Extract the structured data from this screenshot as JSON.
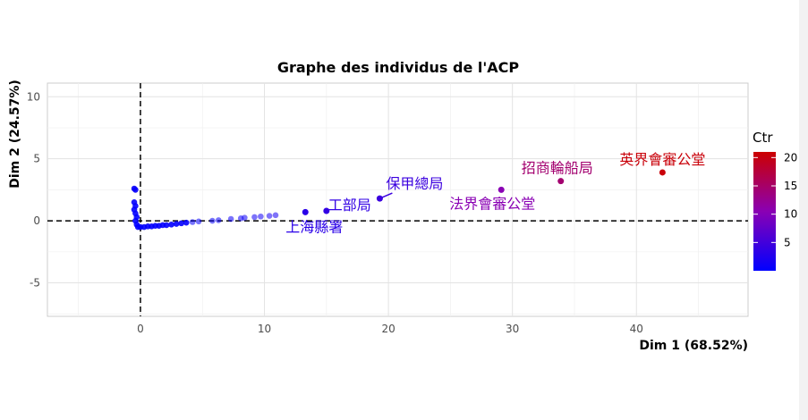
{
  "chart_data": {
    "type": "scatter",
    "title": "Graphe des individus de l'ACP",
    "xlabel": "Dim 1 (68.52%)",
    "ylabel": "Dim 2 (24.57%)",
    "xlim": [
      -7.5,
      49
    ],
    "ylim": [
      -7.7,
      11.1
    ],
    "xticks": [
      0,
      10,
      20,
      30,
      40
    ],
    "yticks": [
      -5,
      0,
      5,
      10
    ],
    "grid": true,
    "reference_lines": {
      "x": 0,
      "y": 0,
      "style": "dashed"
    },
    "color_legend": {
      "title": "Ctr",
      "ticks": [
        5,
        10,
        15,
        20
      ],
      "range": [
        0,
        21
      ],
      "low_color": "#0000ff",
      "high_color": "#cc0000",
      "placement": "right"
    },
    "labeled_points": [
      {
        "label": "英界會審公堂",
        "x": 42.1,
        "y": 3.9,
        "ctr": 20.5
      },
      {
        "label": "招商輪船局",
        "x": 33.9,
        "y": 3.2,
        "ctr": 14.5
      },
      {
        "label": "法界會審公堂",
        "x": 29.1,
        "y": 2.5,
        "ctr": 10.5
      },
      {
        "label": "保甲總局",
        "x": 19.3,
        "y": 1.8,
        "ctr": 4.5
      },
      {
        "label": "工部局",
        "x": 15.0,
        "y": 0.8,
        "ctr": 3.8
      },
      {
        "label": "上海縣署",
        "x": 13.3,
        "y": 0.7,
        "ctr": 3.2
      }
    ],
    "points": [
      {
        "x": -0.5,
        "y": 2.6,
        "ctr": 0.5
      },
      {
        "x": -0.4,
        "y": 2.5,
        "ctr": 0.5
      },
      {
        "x": -0.5,
        "y": 1.5,
        "ctr": 0.3
      },
      {
        "x": -0.4,
        "y": 1.2,
        "ctr": 0.3
      },
      {
        "x": -0.5,
        "y": 0.9,
        "ctr": 0.2
      },
      {
        "x": -0.4,
        "y": 0.6,
        "ctr": 0.2
      },
      {
        "x": -0.3,
        "y": 0.3,
        "ctr": 0.1
      },
      {
        "x": -0.4,
        "y": 0.0,
        "ctr": 0.1
      },
      {
        "x": -0.3,
        "y": -0.3,
        "ctr": 0.1
      },
      {
        "x": -0.2,
        "y": -0.5,
        "ctr": 0.1
      },
      {
        "x": 0.0,
        "y": -0.5,
        "ctr": 0.1
      },
      {
        "x": 0.3,
        "y": -0.5,
        "ctr": 0.1
      },
      {
        "x": 0.6,
        "y": -0.45,
        "ctr": 0.1
      },
      {
        "x": 0.9,
        "y": -0.45,
        "ctr": 0.1
      },
      {
        "x": 1.2,
        "y": -0.4,
        "ctr": 0.1
      },
      {
        "x": 1.5,
        "y": -0.4,
        "ctr": 0.1
      },
      {
        "x": 1.8,
        "y": -0.35,
        "ctr": 0.2
      },
      {
        "x": 2.1,
        "y": -0.35,
        "ctr": 0.2
      },
      {
        "x": 2.5,
        "y": -0.3,
        "ctr": 0.2
      },
      {
        "x": 2.9,
        "y": -0.25,
        "ctr": 0.2
      },
      {
        "x": 3.3,
        "y": -0.2,
        "ctr": 0.3
      },
      {
        "x": 3.7,
        "y": -0.15,
        "ctr": 0.3
      },
      {
        "x": 4.2,
        "y": -0.1,
        "ctr": 0.4
      },
      {
        "x": 4.7,
        "y": -0.05,
        "ctr": 0.4
      },
      {
        "x": 5.8,
        "y": 0.0,
        "ctr": 0.6
      },
      {
        "x": 6.3,
        "y": 0.05,
        "ctr": 0.7
      },
      {
        "x": 7.3,
        "y": 0.15,
        "ctr": 0.9
      },
      {
        "x": 8.1,
        "y": 0.2,
        "ctr": 1.0
      },
      {
        "x": 8.4,
        "y": 0.25,
        "ctr": 1.1
      },
      {
        "x": 9.2,
        "y": 0.3,
        "ctr": 1.2
      },
      {
        "x": 9.7,
        "y": 0.35,
        "ctr": 1.4
      },
      {
        "x": 10.4,
        "y": 0.4,
        "ctr": 1.6
      },
      {
        "x": 10.9,
        "y": 0.45,
        "ctr": 1.7
      }
    ]
  }
}
